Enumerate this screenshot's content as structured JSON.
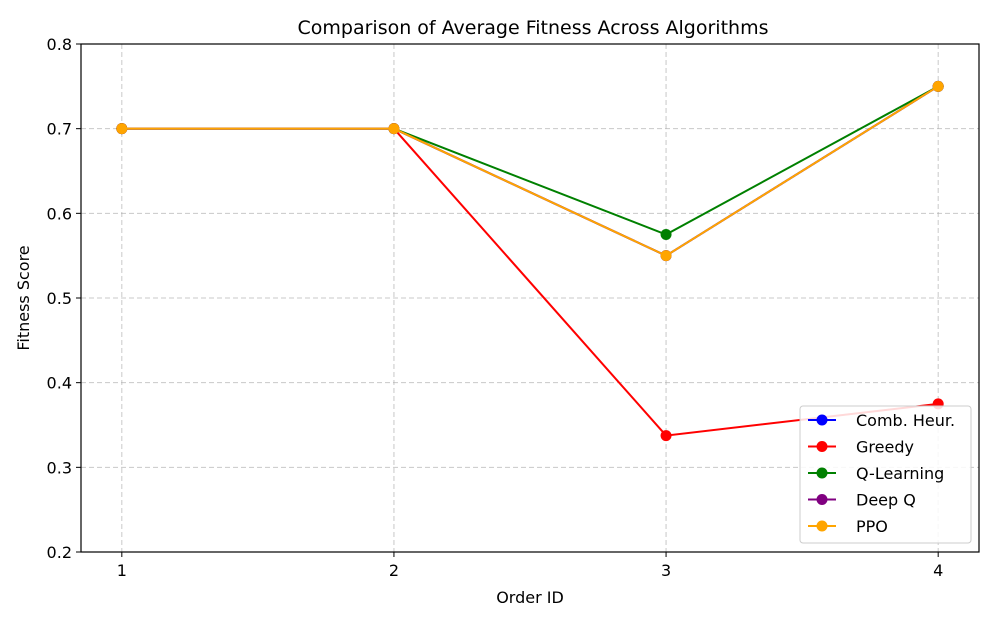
{
  "chart_data": {
    "type": "line",
    "title": "Comparison of Average Fitness Across Algorithms",
    "xlabel": "Order ID",
    "ylabel": "Fitness Score",
    "x": [
      1,
      2,
      3,
      4
    ],
    "xlim": [
      0.85,
      4.15
    ],
    "ylim": [
      0.2,
      0.8
    ],
    "xticks": [
      "1",
      "2",
      "3",
      "4"
    ],
    "yticks": [
      "0.2",
      "0.3",
      "0.4",
      "0.5",
      "0.6",
      "0.7",
      "0.8"
    ],
    "grid": true,
    "legend_position": "lower-right",
    "series": [
      {
        "name": "Comb. Heur.",
        "color": "#0000ff",
        "values": [
          0.7,
          0.7,
          0.55,
          0.75
        ]
      },
      {
        "name": "Greedy",
        "color": "#ff0000",
        "values": [
          0.7,
          0.7,
          0.3375,
          0.375
        ]
      },
      {
        "name": "Q-Learning",
        "color": "#008000",
        "values": [
          0.7,
          0.7,
          0.575,
          0.75
        ]
      },
      {
        "name": "Deep Q",
        "color": "#800080",
        "values": [
          0.7,
          0.7,
          0.55,
          0.75
        ]
      },
      {
        "name": "PPO",
        "color": "#ffa500",
        "values": [
          0.7,
          0.7,
          0.55,
          0.75
        ]
      }
    ]
  }
}
